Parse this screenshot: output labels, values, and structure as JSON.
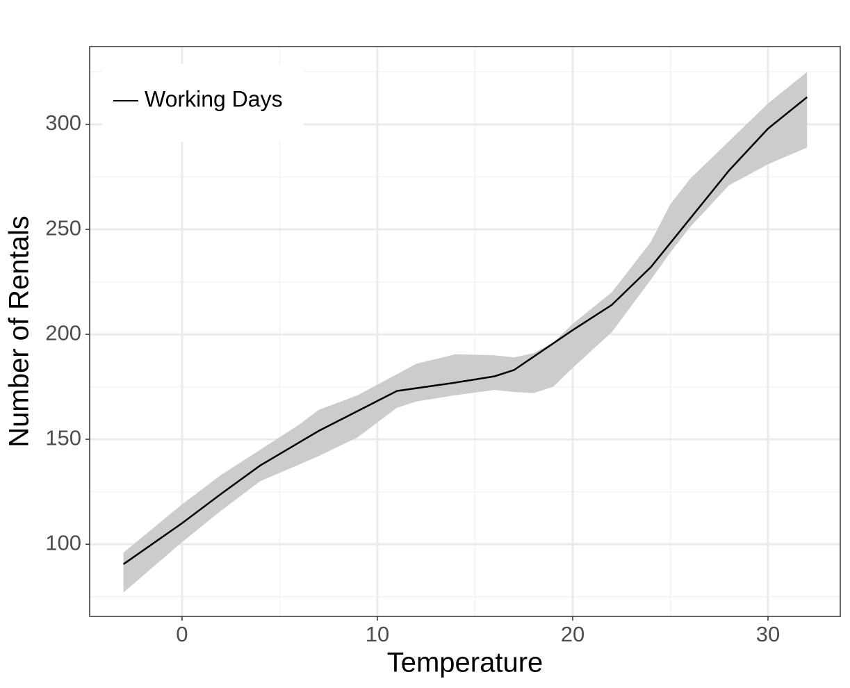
{
  "chart_data": {
    "type": "line",
    "x_label": "Temperature",
    "y_label": "Number of Rentals",
    "xlim": [
      -4.73,
      33.7
    ],
    "ylim": [
      65.6,
      337.1
    ],
    "xticks": [
      0,
      10,
      20,
      30
    ],
    "yticks": [
      100,
      150,
      200,
      250,
      300
    ],
    "grid": true,
    "legend": "top-left",
    "series": [
      {
        "name": "Working Days",
        "color": "#000000",
        "x": [
          -3,
          0,
          2,
          4,
          7,
          11,
          14,
          16,
          17,
          20,
          22,
          24,
          26,
          28,
          30,
          32
        ],
        "values": [
          90.5,
          110,
          124,
          137.5,
          154,
          173,
          177,
          180,
          183,
          202,
          214,
          232,
          255,
          278,
          298,
          313
        ],
        "band": {
          "color": "#cccccc",
          "x": [
            -3,
            0,
            2,
            4,
            6,
            7,
            9,
            11,
            12,
            14,
            16,
            17,
            18,
            19,
            20,
            22,
            24,
            25,
            26,
            28,
            30,
            32
          ],
          "lower": [
            77,
            101,
            116,
            130,
            138,
            142,
            151,
            165,
            168,
            171,
            173.5,
            172.5,
            172,
            175,
            184,
            201,
            226,
            239,
            251,
            271,
            281,
            289
          ],
          "upper": [
            96,
            119,
            133,
            145,
            157,
            164,
            171,
            181,
            186,
            190.5,
            190,
            189,
            191,
            196,
            205,
            220,
            244,
            262,
            274,
            292,
            310,
            325
          ]
        }
      }
    ]
  }
}
